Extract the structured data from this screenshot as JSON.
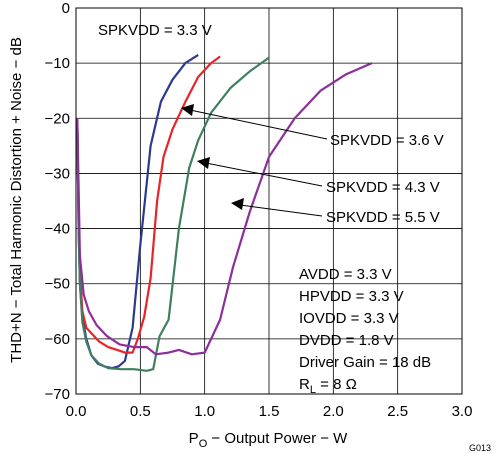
{
  "chart_data": {
    "type": "line",
    "xlabel": {
      "main": "P",
      "sub": "O",
      "rest": " − Output Power − W"
    },
    "ylabel": "THD+N − Total Harmonic Distortion + Noise − dB",
    "xlim": [
      0,
      3
    ],
    "ylim": [
      -70,
      0
    ],
    "xticks": [
      0,
      0.5,
      1,
      1.5,
      2,
      2.5,
      3
    ],
    "xtick_labels": [
      "0.0",
      "0.5",
      "1.0",
      "1.5",
      "2.0",
      "2.5",
      "3.0"
    ],
    "yticks": [
      0,
      -10,
      -20,
      -30,
      -40,
      -50,
      -60,
      -70
    ],
    "ytick_labels": [
      "0",
      "−10",
      "−20",
      "−30",
      "−40",
      "−50",
      "−60",
      "−70"
    ],
    "grid": true,
    "series": [
      {
        "name": "SPKVDD = 3.3 V",
        "color": "#2b3a8f",
        "x": [
          0.01,
          0.02,
          0.03,
          0.05,
          0.08,
          0.12,
          0.17,
          0.22,
          0.28,
          0.33,
          0.38,
          0.44,
          0.5,
          0.58,
          0.66,
          0.75,
          0.85,
          0.95
        ],
        "y": [
          -20,
          -40,
          -50,
          -56,
          -60,
          -63,
          -64.5,
          -65,
          -65.3,
          -65,
          -64,
          -58,
          -43,
          -25,
          -17,
          -13,
          -10,
          -8.5
        ]
      },
      {
        "name": "SPKVDD = 3.6 V",
        "color": "#e8232a",
        "x": [
          0.01,
          0.02,
          0.03,
          0.05,
          0.08,
          0.12,
          0.18,
          0.25,
          0.32,
          0.38,
          0.44,
          0.48,
          0.53,
          0.58,
          0.63,
          0.68,
          0.75,
          0.85,
          0.95,
          1.05,
          1.12
        ],
        "y": [
          -20,
          -38,
          -48,
          -55,
          -58,
          -59,
          -60.5,
          -61.5,
          -62,
          -62.5,
          -62.5,
          -60,
          -56,
          -49,
          -35,
          -27,
          -22,
          -17,
          -12.5,
          -10,
          -8.8
        ]
      },
      {
        "name": "SPKVDD = 4.3 V",
        "color": "#3f7f5f",
        "x": [
          0.01,
          0.02,
          0.03,
          0.05,
          0.08,
          0.12,
          0.18,
          0.25,
          0.35,
          0.45,
          0.55,
          0.6,
          0.65,
          0.72,
          0.8,
          0.88,
          0.95,
          1.05,
          1.2,
          1.35,
          1.5
        ],
        "y": [
          -20,
          -40,
          -50,
          -57,
          -60.5,
          -63,
          -64.5,
          -65.3,
          -65.5,
          -65.5,
          -65.8,
          -65.5,
          -59.5,
          -56.5,
          -40,
          -29,
          -24,
          -19,
          -14.5,
          -11.5,
          -9
        ]
      },
      {
        "name": "SPKVDD = 5.5 V",
        "color": "#8b2f9b",
        "x": [
          0.01,
          0.03,
          0.06,
          0.1,
          0.16,
          0.24,
          0.34,
          0.45,
          0.55,
          0.62,
          0.72,
          0.8,
          0.9,
          1.0,
          1.12,
          1.22,
          1.35,
          1.5,
          1.7,
          1.9,
          2.1,
          2.3
        ],
        "y": [
          -20,
          -45,
          -52,
          -55,
          -57.5,
          -59.5,
          -61,
          -61.5,
          -61.5,
          -62.8,
          -62.5,
          -62,
          -62.8,
          -62.5,
          -56.5,
          -47,
          -37,
          -27,
          -20,
          -15,
          -12,
          -10
        ]
      }
    ],
    "labels": {
      "s33": "SPKVDD = 3.3 V",
      "s36": "SPKVDD = 3.6 V",
      "s43": "SPKVDD = 4.3 V",
      "s55": "SPKVDD = 5.5 V"
    },
    "conditions": {
      "avdd": "AVDD = 3.3 V",
      "hpvdd": "HPVDD = 3.3 V",
      "iovdd": "IOVDD = 3.3 V",
      "dvdd": "DVDD = 1.8 V",
      "gain": "Driver Gain = 18 dB",
      "rl_main": "R",
      "rl_sub": "L",
      "rl_rest": " = 8 Ω"
    },
    "figure_code": "G013"
  }
}
